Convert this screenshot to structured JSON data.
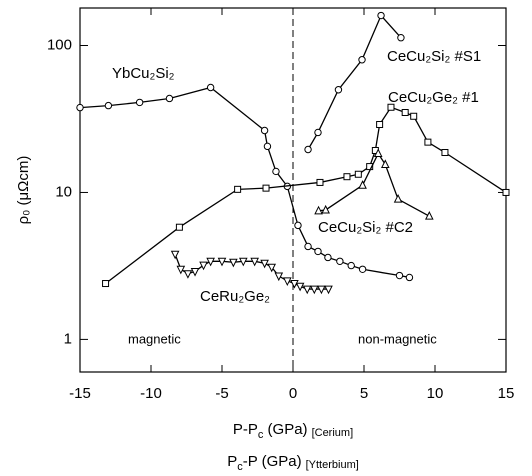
{
  "chart_data": {
    "type": "scatter",
    "y_label": "ρ₀ (μΩcm)",
    "x_label": {
      "main": "P-P",
      "sub": "c",
      "unit": " (GPa)",
      "note": "[Cerium]"
    },
    "x_label2": {
      "main": "P",
      "sub": "c",
      "unit": "-P (GPa)",
      "note": "[Ytterbium]"
    },
    "xlim": [
      -15,
      15
    ],
    "xticks": [
      -15,
      -10,
      -5,
      0,
      5,
      10,
      15
    ],
    "ylim": [
      0.6,
      180
    ],
    "yticks": [
      1,
      10,
      100
    ],
    "log_y": true,
    "vline": 0,
    "annotations": [
      "magnetic",
      "non-magnetic"
    ],
    "series": [
      {
        "name": "YbCu₂Si₂",
        "marker": "circle",
        "color": "#000000",
        "x": [
          -15,
          -13,
          -10.8,
          -8.7,
          -5.8,
          -2.0,
          -1.8,
          -1.2,
          -0.4,
          0.35,
          1.06,
          1.76,
          2.46,
          3.3,
          4.1,
          4.9,
          7.5,
          8.2
        ],
        "values": [
          37.8,
          39,
          41,
          43.6,
          51.8,
          26.4,
          20.6,
          13.9,
          11,
          5.97,
          4.29,
          3.97,
          3.61,
          3.4,
          3.18,
          3.0,
          2.72,
          2.64
        ]
      },
      {
        "name": "CeCu₂Si₂ #S1",
        "marker": "circle",
        "color": "#000000",
        "x": [
          1.06,
          1.76,
          3.2,
          4.86,
          6.2,
          7.6
        ],
        "values": [
          19.6,
          25.6,
          50,
          80,
          160,
          113
        ]
      },
      {
        "name": "CeCu₂Ge₂ #1",
        "marker": "square",
        "color": "#000000",
        "x": [
          -13.2,
          -8,
          -3.9,
          -1.9,
          1.9,
          3.8,
          4.6,
          5.4,
          5.8,
          6.1,
          6.9,
          7.9,
          8.5,
          9.5,
          10.7,
          15
        ],
        "values": [
          2.4,
          5.8,
          10.5,
          10.7,
          11.7,
          12.8,
          13.3,
          15,
          19.3,
          29,
          38,
          35,
          33,
          22,
          18.7,
          10
        ]
      },
      {
        "name": "CeCu₂Si₂ #C2",
        "marker": "triangle",
        "color": "#000000",
        "x": [
          1.8,
          2.3,
          4.9,
          6.0,
          6.5,
          7.4,
          9.6
        ],
        "values": [
          7.5,
          7.6,
          11.2,
          18.4,
          15.5,
          9.0,
          6.9
        ]
      },
      {
        "name": "CeRu₂Ge₂",
        "marker": "triangle-down",
        "color": "#000000",
        "x": [
          -8.3,
          -7.9,
          -7.4,
          -6.9,
          -6.3,
          -5.8,
          -5.0,
          -4.2,
          -3.5,
          -2.7,
          -2.0,
          -1.5,
          -1.0,
          -0.4,
          0.1,
          0.5,
          1.0,
          1.5,
          2.0,
          2.5
        ],
        "values": [
          3.8,
          3.0,
          2.8,
          2.9,
          3.2,
          3.4,
          3.4,
          3.35,
          3.4,
          3.4,
          3.3,
          3.1,
          2.7,
          2.5,
          2.4,
          2.3,
          2.2,
          2.2,
          2.2,
          2.2
        ]
      }
    ]
  }
}
